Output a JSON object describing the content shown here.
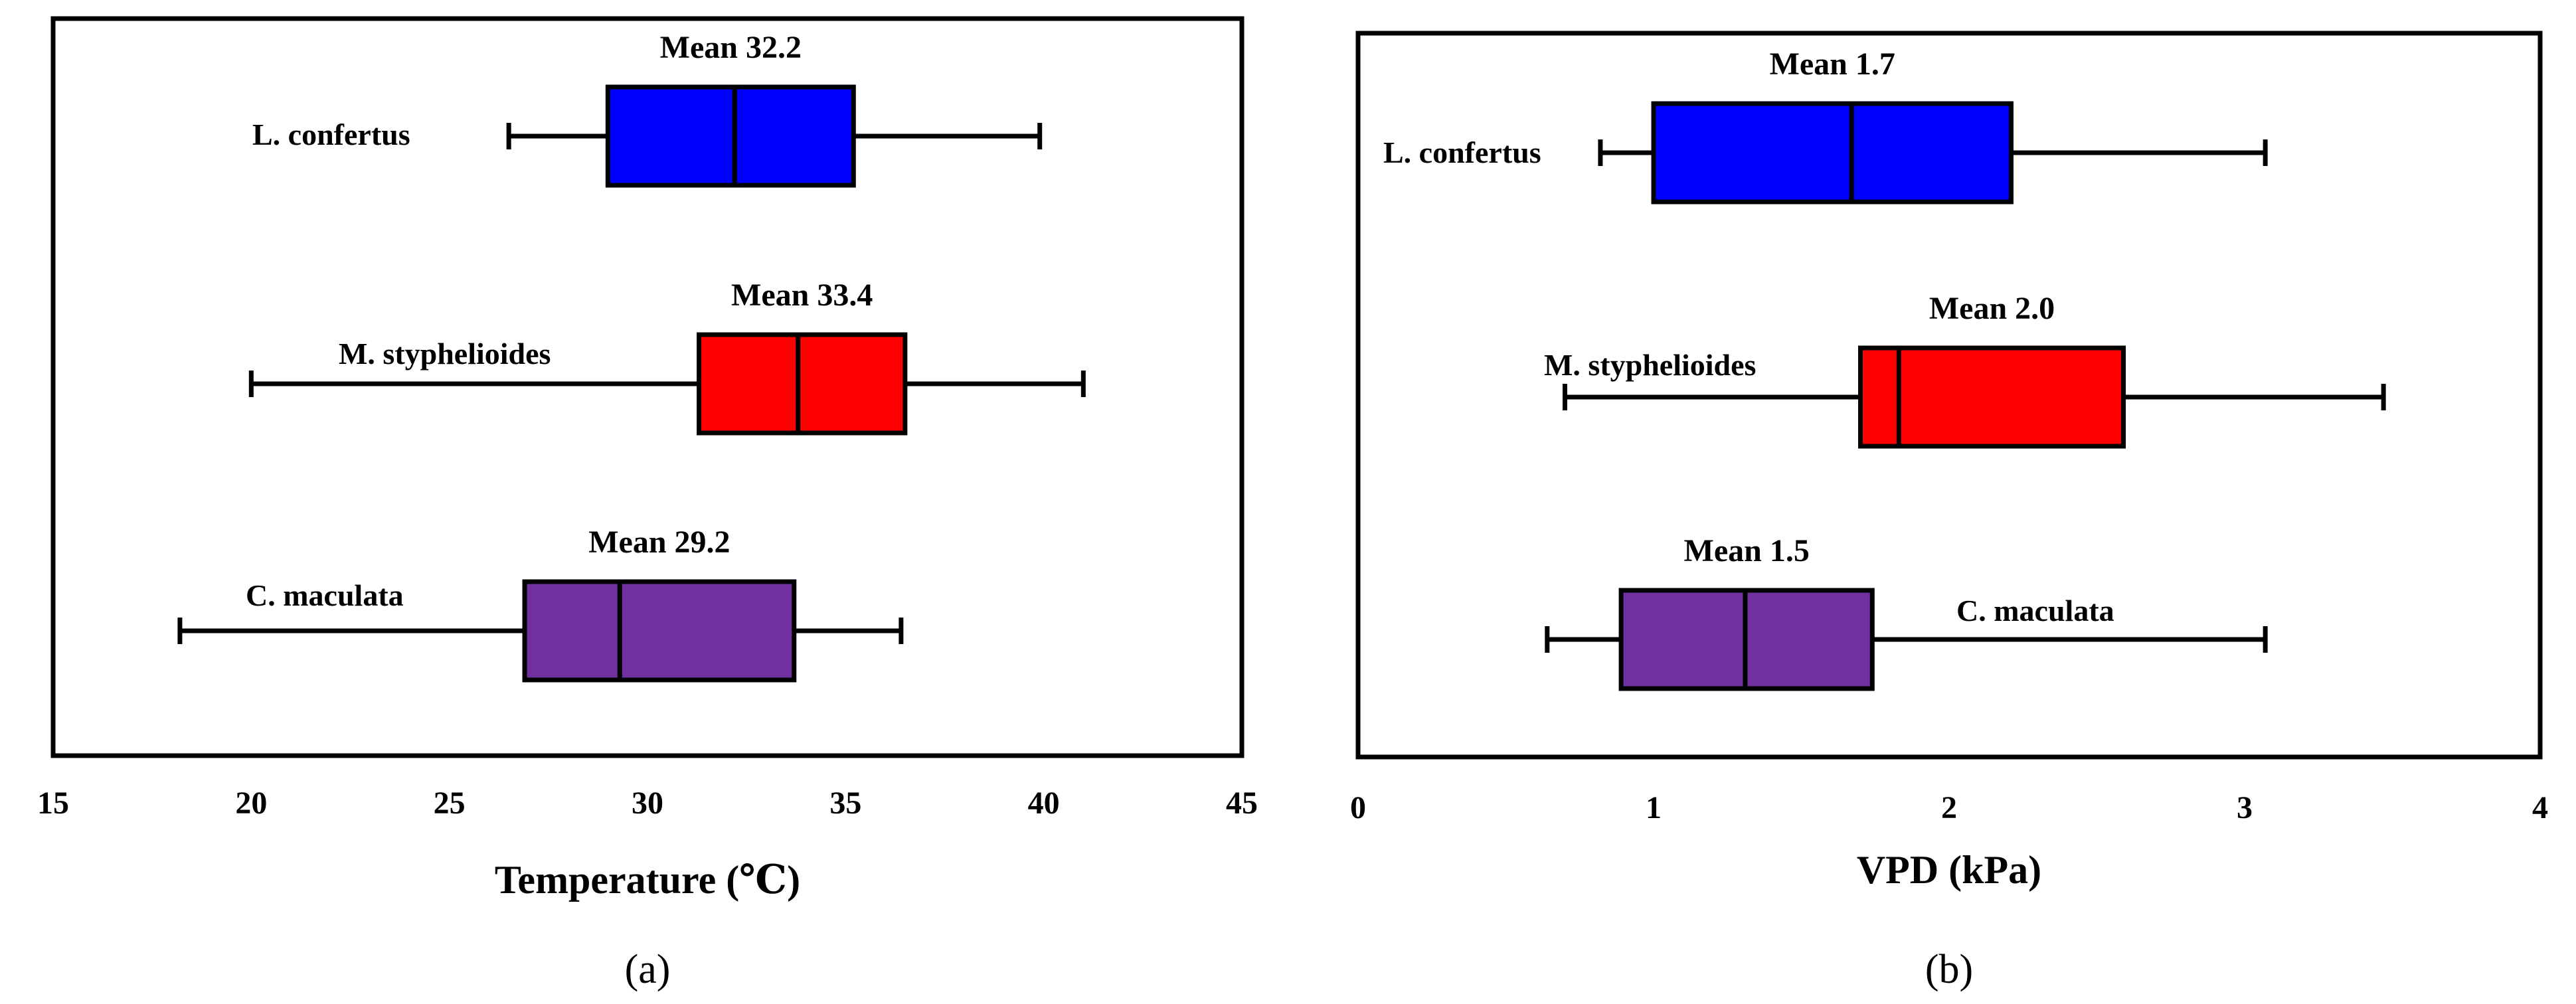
{
  "chart_data": [
    {
      "type": "boxplot",
      "panel_label": "(a)",
      "xlabel": "Temperature (℃)",
      "xlim": [
        15,
        45
      ],
      "xticks": [
        15,
        20,
        25,
        30,
        35,
        40,
        45
      ],
      "series": [
        {
          "name": "L. confertus",
          "min": 26.5,
          "q1": 29.0,
          "median": 32.2,
          "q3": 35.2,
          "max": 39.9,
          "mean_label": "Mean 32.2",
          "color": "#0000FF"
        },
        {
          "name": "M. styphelioides",
          "min": 20.0,
          "q1": 31.3,
          "median": 33.8,
          "q3": 36.5,
          "max": 41.0,
          "mean_label": "Mean 33.4",
          "color": "#FF0000"
        },
        {
          "name": "C. maculata",
          "min": 18.2,
          "q1": 26.9,
          "median": 29.3,
          "q3": 33.7,
          "max": 36.4,
          "mean_label": "Mean 29.2",
          "color": "#7030A0"
        }
      ]
    },
    {
      "type": "boxplot",
      "panel_label": "(b)",
      "xlabel": "VPD (kPa)",
      "xlim": [
        0,
        4
      ],
      "xticks": [
        0,
        1,
        2,
        3,
        4
      ],
      "series": [
        {
          "name": "L. confertus",
          "min": 0.82,
          "q1": 1.0,
          "median": 1.67,
          "q3": 2.21,
          "max": 3.07,
          "mean_label": "Mean 1.7",
          "color": "#0000FF"
        },
        {
          "name": "M. styphelioides",
          "min": 0.7,
          "q1": 1.7,
          "median": 1.83,
          "q3": 2.59,
          "max": 3.47,
          "mean_label": "Mean 2.0",
          "color": "#FF0000"
        },
        {
          "name": "C. maculata",
          "min": 0.64,
          "q1": 0.89,
          "median": 1.31,
          "q3": 1.74,
          "max": 3.07,
          "mean_label": "Mean 1.5",
          "color": "#7030A0"
        }
      ]
    }
  ]
}
